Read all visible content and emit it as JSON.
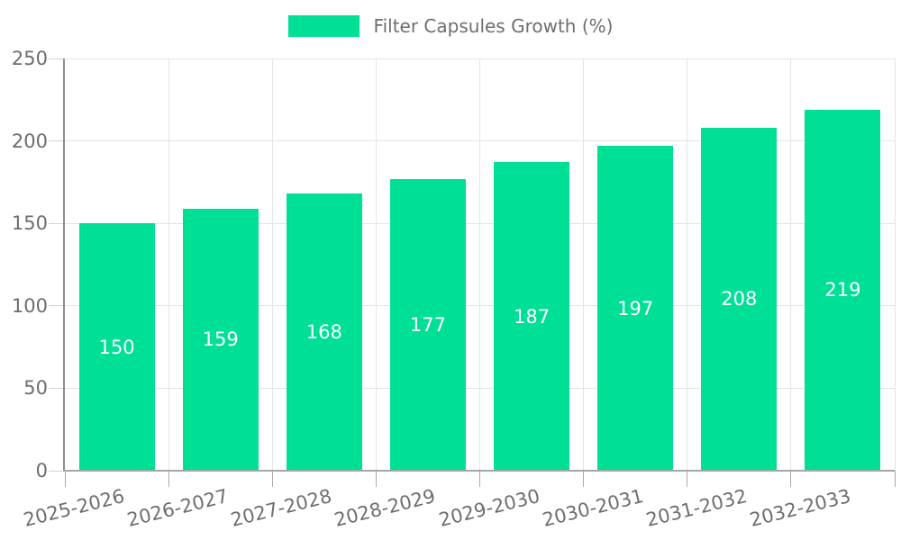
{
  "colors": {
    "bar": "#00df96",
    "grid": "#e4e4e4",
    "axis_y_line": "#8f8f8f",
    "axis_x_line": "#a6a6a6",
    "tick_y": "#d4d4d4",
    "tick_x": "#a9a9a9",
    "axis_text": "#6e6e6e",
    "legend_text": "#6e6e6e",
    "bar_label": "#ffffff",
    "background": "#ffffff"
  },
  "chart_data": {
    "type": "bar",
    "title": "Filter Capsules Growth (%)",
    "categories": [
      "2025-2026",
      "2026-2027",
      "2027-2028",
      "2028-2029",
      "2029-2030",
      "2030-2031",
      "2031-2032",
      "2032-2033"
    ],
    "series": [
      {
        "name": "Filter Capsules Growth (%)",
        "values": [
          150,
          159,
          168,
          177,
          187,
          197,
          208,
          219
        ]
      }
    ],
    "xlabel": "",
    "ylabel": "",
    "ylim": [
      0,
      250
    ],
    "yticks": [
      0,
      50,
      100,
      150,
      200,
      250
    ],
    "grid": true,
    "legend_position": "top-center",
    "value_labels": "inside-center",
    "x_label_rotation_deg": -14
  }
}
